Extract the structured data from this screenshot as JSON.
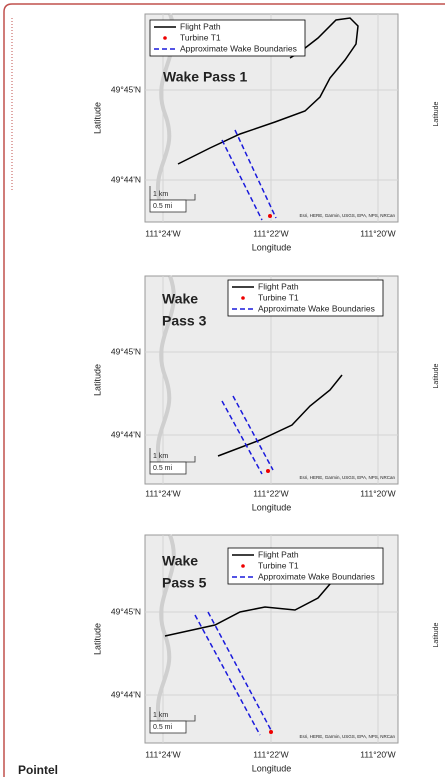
{
  "panels": [
    {
      "title": [
        "Wake Pass 1"
      ],
      "legend": [
        "Flight Path",
        "Turbine T1",
        "Approximate Wake Boundaries"
      ],
      "x_ticks": [
        "111°24'W",
        "111°22'W",
        "111°20'W"
      ],
      "y_ticks": [
        "49°45'N",
        "49°44'N"
      ],
      "x_label": "Longitude",
      "y_label": "Latitude",
      "scale": [
        "1 km",
        "0.5 mi"
      ],
      "attribution": "Esri, HERE, Garmin, USGS, EPA, NPS, NRCan"
    },
    {
      "title": [
        "Wake",
        "Pass 3"
      ],
      "legend": [
        "Flight Path",
        "Turbine T1",
        "Approximate Wake Boundaries"
      ],
      "x_ticks": [
        "111°24'W",
        "111°22'W",
        "111°20'W"
      ],
      "y_ticks": [
        "49°45'N",
        "49°44'N"
      ],
      "x_label": "Longitude",
      "y_label": "Latitude",
      "scale": [
        "1 km",
        "0.5 mi"
      ],
      "attribution": "Esri, HERE, Garmin, USGS, EPA, NPS, NRCan"
    },
    {
      "title": [
        "Wake",
        "Pass 5"
      ],
      "legend": [
        "Flight Path",
        "Turbine T1",
        "Approximate Wake Boundaries"
      ],
      "x_ticks": [
        "111°24'W",
        "111°22'W",
        "111°20'W"
      ],
      "y_ticks": [
        "49°45'N",
        "49°44'N"
      ],
      "x_label": "Longitude",
      "y_label": "Latitude",
      "scale": [
        "1 km",
        "0.5 mi"
      ],
      "attribution": "Esri, HERE, Garmin, USGS, EPA, NPS, NRCan"
    }
  ],
  "side_labels": [
    "Latitude",
    "Latitude",
    "Latitude"
  ],
  "footer_text": "Pointel"
}
